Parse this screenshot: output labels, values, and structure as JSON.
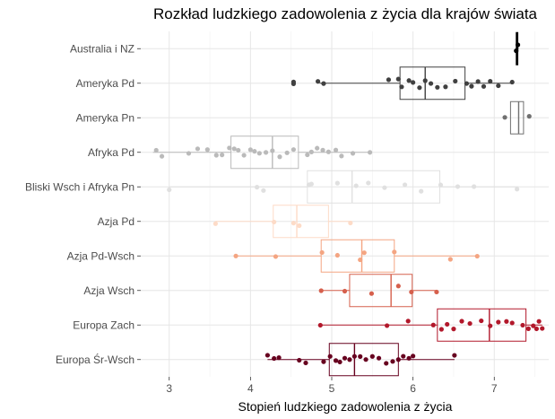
{
  "chart_data": {
    "type": "boxplot-jitter",
    "orientation": "horizontal",
    "title": "Rozkład ludzkiego zadowolenia z życia dla krajów świata",
    "xlabel": "Stopień ludzkiego zadowolenia z życia",
    "ylabel": "",
    "xlim": [
      2.65,
      7.67
    ],
    "xticks": [
      "3",
      "4",
      "5",
      "6",
      "7"
    ],
    "grid": true,
    "legend": "none",
    "categories": [
      {
        "name": "Australia i NZ",
        "color": "#000000",
        "box": {
          "min": 7.27,
          "q1": 7.27,
          "median": 7.28,
          "q3": 7.29,
          "max": 7.3
        },
        "points": [
          7.27,
          7.29
        ]
      },
      {
        "name": "Ameryka Pd",
        "color": "#404040",
        "box": {
          "min": 4.85,
          "q1": 5.84,
          "median": 6.15,
          "q3": 6.64,
          "max": 7.23
        },
        "points": [
          4.53,
          4.53,
          4.83,
          4.9,
          5.7,
          5.82,
          5.86,
          5.95,
          6.0,
          6.08,
          6.15,
          6.22,
          6.3,
          6.4,
          6.52,
          6.66,
          6.72,
          6.8,
          6.87,
          6.95,
          7.05,
          7.22
        ]
      },
      {
        "name": "Ameryka Pn",
        "color": "#707070",
        "box": {
          "min": 7.2,
          "q1": 7.2,
          "median": 7.3,
          "q3": 7.36,
          "max": 7.36
        },
        "points": [
          7.13,
          7.43
        ]
      },
      {
        "name": "Afryka Pd",
        "color": "#bababa",
        "box": {
          "min": 2.8,
          "q1": 3.76,
          "median": 4.27,
          "q3": 4.59,
          "max": 5.48
        },
        "points": [
          2.84,
          2.91,
          3.24,
          3.35,
          3.47,
          3.58,
          3.65,
          3.74,
          3.8,
          3.85,
          3.92,
          4.0,
          4.05,
          4.11,
          4.19,
          4.27,
          4.36,
          4.45,
          4.53,
          4.7,
          4.75,
          4.82,
          4.89,
          4.96,
          5.05,
          5.12,
          5.26,
          5.47
        ]
      },
      {
        "name": "Bliski Wsch i Afryka Pn",
        "color": "#e0e0e0",
        "box": {
          "min": 3.0,
          "q1": 4.7,
          "median": 5.25,
          "q3": 6.33,
          "max": 7.3
        },
        "points": [
          3.0,
          4.08,
          4.16,
          4.72,
          4.75,
          5.07,
          5.3,
          5.45,
          5.65,
          5.9,
          6.1,
          6.34,
          6.55,
          6.75,
          7.28
        ]
      },
      {
        "name": "Azja Pd",
        "color": "#fddbc7",
        "box": {
          "min": 3.57,
          "q1": 4.28,
          "median": 4.57,
          "q3": 4.96,
          "max": 5.25
        },
        "points": [
          3.57,
          4.29,
          4.53,
          4.6,
          5.23
        ]
      },
      {
        "name": "Azja Pd-Wsch",
        "color": "#f4a582",
        "box": {
          "min": 3.82,
          "q1": 4.87,
          "median": 5.37,
          "q3": 5.77,
          "max": 6.79
        },
        "points": [
          3.82,
          4.31,
          4.88,
          5.07,
          5.35,
          5.4,
          5.77,
          6.46,
          6.79
        ]
      },
      {
        "name": "Azja Wsch",
        "color": "#d6604d",
        "box": {
          "min": 4.87,
          "q1": 5.22,
          "median": 5.73,
          "q3": 5.99,
          "max": 6.29
        },
        "points": [
          4.87,
          5.16,
          5.49,
          5.82,
          5.98,
          6.29
        ]
      },
      {
        "name": "Europa Zach",
        "color": "#b2182b",
        "box": {
          "min": 4.86,
          "q1": 6.3,
          "median": 6.94,
          "q3": 7.39,
          "max": 7.59
        },
        "points": [
          4.86,
          5.68,
          5.94,
          6.25,
          6.35,
          6.42,
          6.5,
          6.6,
          6.7,
          6.84,
          6.95,
          7.05,
          7.15,
          7.22,
          7.35,
          7.42,
          7.48,
          7.52,
          7.55,
          7.59
        ]
      },
      {
        "name": "Europa Śr-Wsch",
        "color": "#67001f",
        "box": {
          "min": 4.21,
          "q1": 4.97,
          "median": 5.28,
          "q3": 5.82,
          "max": 6.51
        },
        "points": [
          4.21,
          4.29,
          4.35,
          4.6,
          4.68,
          4.9,
          4.98,
          5.05,
          5.1,
          5.16,
          5.22,
          5.28,
          5.35,
          5.42,
          5.5,
          5.58,
          5.67,
          5.75,
          5.82,
          5.88,
          5.95,
          6.0,
          6.51
        ]
      }
    ]
  }
}
